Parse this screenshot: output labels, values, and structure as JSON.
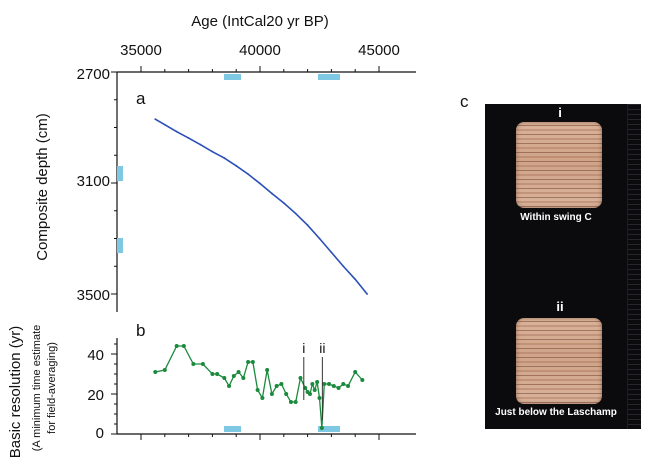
{
  "chart_data": [
    {
      "panel": "a",
      "type": "line",
      "xlabel": "Age (IntCal20 yr BP)",
      "ylabel": "Composite depth (cm)",
      "xlim": [
        35000,
        45000
      ],
      "ylim": [
        2700,
        3550
      ],
      "y_inverted": true,
      "xticks": [
        35000,
        40000,
        45000
      ],
      "yticks": [
        2700,
        3100,
        3500
      ],
      "x": [
        35600,
        36000,
        36500,
        37000,
        37500,
        38000,
        38500,
        39000,
        39500,
        40000,
        40500,
        41000,
        41500,
        42000,
        42500,
        43000,
        43500,
        44000,
        44500
      ],
      "y": [
        2870,
        2890,
        2915,
        2938,
        2962,
        2987,
        3010,
        3038,
        3068,
        3102,
        3138,
        3172,
        3210,
        3252,
        3300,
        3350,
        3400,
        3447,
        3500
      ],
      "series_color": "#2a4fb8"
    },
    {
      "panel": "b",
      "type": "line",
      "ylabel": "Basic resolution (yr)",
      "ylabel_secondary": "(A minimum time estimate for field-averaging)",
      "xlim": [
        35000,
        45000
      ],
      "ylim": [
        0,
        48
      ],
      "yticks": [
        0,
        20,
        40
      ],
      "x": [
        35600,
        36000,
        36500,
        36800,
        37200,
        37600,
        38000,
        38200,
        38500,
        38700,
        38900,
        39100,
        39300,
        39500,
        39700,
        39900,
        40100,
        40300,
        40500,
        40700,
        40900,
        41100,
        41300,
        41500,
        41700,
        41900,
        42000,
        42100,
        42200,
        42300,
        42400,
        42500,
        42600,
        42700,
        42900,
        43100,
        43300,
        43500,
        43700,
        44000,
        44300
      ],
      "y": [
        31,
        32,
        44,
        44,
        35,
        35,
        30,
        30,
        28,
        24,
        29,
        31,
        28,
        36,
        36,
        22,
        18,
        32,
        20,
        24,
        25,
        20,
        16,
        16,
        28,
        23,
        21,
        20,
        25,
        22,
        26,
        18,
        3,
        25,
        25,
        24,
        23,
        25,
        24,
        31,
        27
      ],
      "series_color": "#1a8a3c",
      "annotations": [
        {
          "label": "i",
          "x": 41840
        },
        {
          "label": "ii",
          "x": 42620
        }
      ]
    }
  ],
  "panel_labels": {
    "a": "a",
    "b": "b",
    "c": "c"
  },
  "x_tick_labels": [
    "35000",
    "40000",
    "45000"
  ],
  "a_tick_labels": [
    "2700",
    "3100",
    "3500"
  ],
  "b_tick_labels": [
    "40",
    "20",
    "0"
  ],
  "texts": {
    "xlabel": "Age (IntCal20 yr BP)",
    "ylabel_a": "Composite depth (cm)",
    "ylabel_b": "Basic resolution (yr)",
    "ylabel_b2_line1": "(A minimum time estimate",
    "ylabel_b2_line2": "for  field-averaging)",
    "ann_i": "i",
    "ann_ii": "ii"
  },
  "photo": {
    "label_i": "i",
    "label_ii": "ii",
    "caption_i": "Within swing C",
    "caption_ii": "Just below the Laschamp"
  },
  "colors": {
    "marker": "#7ec8e3",
    "line_a": "#2a4fb8",
    "line_b": "#1a8a3c"
  }
}
